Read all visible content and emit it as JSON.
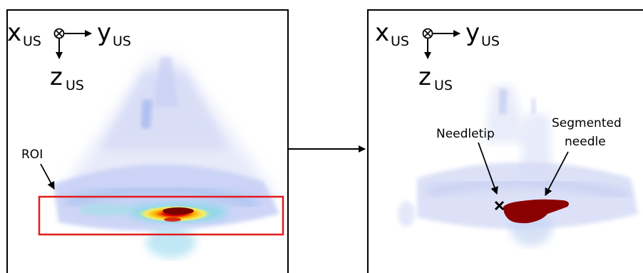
{
  "panels": {
    "left": {
      "axes": {
        "x": "x",
        "y": "y",
        "z": "z",
        "subscript": "US"
      },
      "roi_label": "ROI"
    },
    "right": {
      "axes": {
        "x": "x",
        "y": "y",
        "z": "z",
        "subscript": "US"
      },
      "needle_tip_label": "Needletip",
      "segmented_needle_label_line1": "Segmented",
      "segmented_needle_label_line2": "needle"
    }
  },
  "colors": {
    "frame": "#000000",
    "roi_box": "#e31b1b",
    "ultrasound_haze": "#c7cef4",
    "segmented_needle": "#8b0000"
  }
}
